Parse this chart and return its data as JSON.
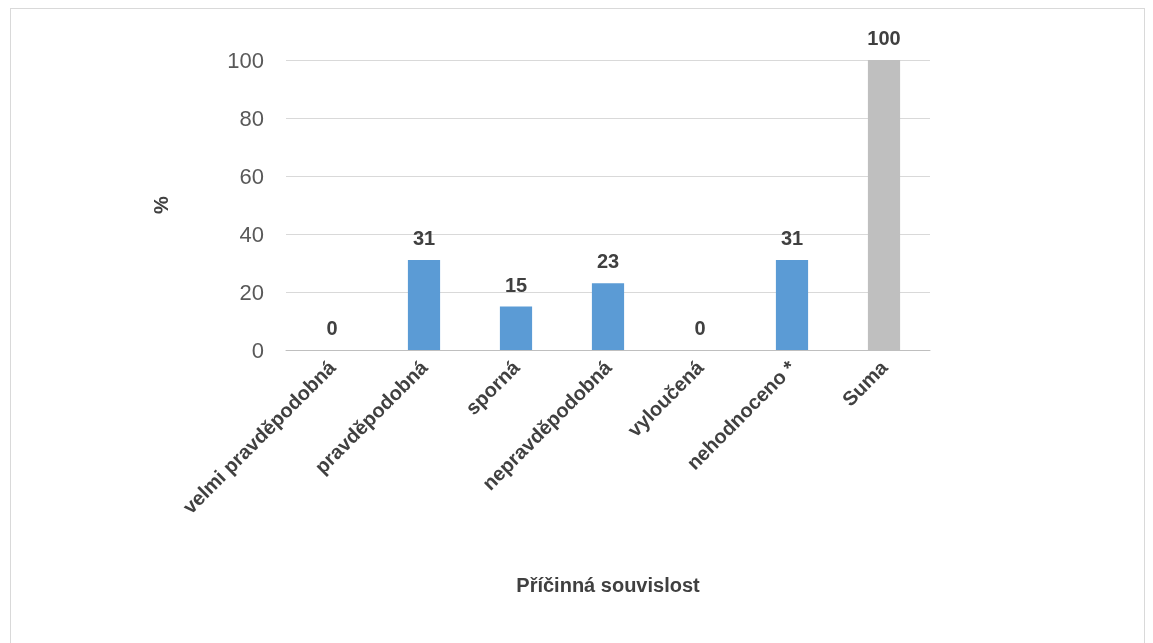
{
  "chart_data": {
    "type": "bar",
    "categories": [
      "velmi pravděpodobná",
      "pravděpodobná",
      "sporná",
      "nepravděpodobná",
      "vyloučená",
      "nehodnoceno *",
      "Suma"
    ],
    "values": [
      0,
      31,
      15,
      23,
      0,
      31,
      100
    ],
    "colors": [
      "#5b9bd5",
      "#5b9bd5",
      "#5b9bd5",
      "#5b9bd5",
      "#5b9bd5",
      "#5b9bd5",
      "#bfbfbf"
    ],
    "xlabel": "Příčinná souvislost",
    "ylabel": "%",
    "ylim": [
      0,
      100
    ],
    "yticks": [
      0,
      20,
      40,
      60,
      80,
      100
    ],
    "grid": "y",
    "data_labels": true
  }
}
